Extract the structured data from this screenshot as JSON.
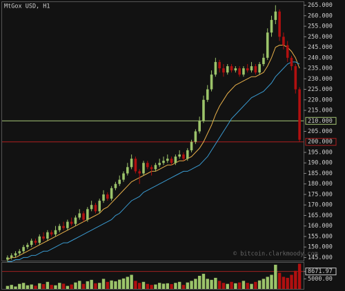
{
  "chart_data": {
    "type": "candlestick",
    "title": "MtGox USD, H1",
    "watermark": "© bitcoin.clarkmoody.com",
    "up_color": "#9cc46a",
    "down_color": "#b01010",
    "ylim": [
      143.5,
      266.5
    ],
    "yticks": [
      {
        "value": 145,
        "label": "145.000"
      },
      {
        "value": 150,
        "label": "150.000"
      },
      {
        "value": 155,
        "label": "155.000"
      },
      {
        "value": 160,
        "label": "160.000"
      },
      {
        "value": 165,
        "label": "165.000"
      },
      {
        "value": 170,
        "label": "170.000"
      },
      {
        "value": 175,
        "label": "175.000"
      },
      {
        "value": 180,
        "label": "180.000"
      },
      {
        "value": 185,
        "label": "185.000"
      },
      {
        "value": 190,
        "label": "190.000"
      },
      {
        "value": 195,
        "label": "195.000"
      },
      {
        "value": 205,
        "label": "205.000"
      },
      {
        "value": 215,
        "label": "215.000"
      },
      {
        "value": 220,
        "label": "220.000"
      },
      {
        "value": 225,
        "label": "225.000"
      },
      {
        "value": 230,
        "label": "230.000"
      },
      {
        "value": 235,
        "label": "235.000"
      },
      {
        "value": 240,
        "label": "240.000"
      },
      {
        "value": 245,
        "label": "245.000"
      },
      {
        "value": 250,
        "label": "250.000"
      },
      {
        "value": 255,
        "label": "255.000"
      },
      {
        "value": 260,
        "label": "260.000"
      },
      {
        "value": 265,
        "label": "265.000"
      }
    ],
    "open": [
      144,
      145,
      146,
      147,
      148,
      150,
      151,
      153,
      152,
      155,
      154,
      157,
      156,
      158,
      160,
      159,
      162,
      161,
      164,
      166,
      163,
      168,
      170,
      167,
      172,
      175,
      173,
      178,
      180,
      182,
      185,
      188,
      192,
      186,
      185,
      190,
      188,
      187,
      189,
      190,
      191,
      192,
      190,
      193,
      194,
      192,
      196,
      200,
      205,
      210,
      220,
      225,
      232,
      238,
      235,
      233,
      236,
      234,
      235,
      232,
      235,
      234,
      236,
      233,
      237,
      240,
      252,
      258,
      262,
      250,
      246,
      240,
      236,
      225
    ],
    "high": [
      146,
      147,
      148,
      149,
      151,
      152,
      154,
      154,
      156,
      157,
      158,
      158,
      160,
      161,
      162,
      163,
      164,
      165,
      168,
      167,
      169,
      172,
      171,
      173,
      177,
      176,
      179,
      181,
      184,
      186,
      190,
      194,
      193,
      187,
      191,
      191,
      189,
      190,
      192,
      193,
      194,
      193,
      194,
      196,
      195,
      197,
      201,
      206,
      212,
      222,
      227,
      234,
      240,
      239,
      237,
      237,
      237,
      236,
      236,
      236,
      237,
      238,
      237,
      238,
      242,
      254,
      260,
      265,
      263,
      252,
      248,
      241,
      237,
      226
    ],
    "low": [
      143,
      144,
      145,
      146,
      147,
      149,
      150,
      151,
      151,
      153,
      153,
      155,
      155,
      157,
      158,
      158,
      160,
      160,
      163,
      162,
      162,
      167,
      166,
      166,
      171,
      172,
      172,
      177,
      179,
      181,
      184,
      187,
      185,
      180,
      184,
      187,
      184,
      186,
      188,
      189,
      190,
      189,
      189,
      192,
      191,
      191,
      195,
      199,
      204,
      209,
      219,
      224,
      231,
      233,
      231,
      232,
      233,
      233,
      231,
      231,
      233,
      233,
      232,
      232,
      236,
      239,
      250,
      256,
      248,
      244,
      238,
      234,
      223,
      200
    ],
    "close": [
      145,
      146,
      147,
      148,
      150,
      151,
      153,
      152,
      155,
      154,
      157,
      156,
      158,
      160,
      159,
      162,
      161,
      164,
      166,
      163,
      168,
      170,
      167,
      172,
      175,
      173,
      178,
      180,
      182,
      185,
      188,
      192,
      186,
      185,
      190,
      188,
      187,
      189,
      190,
      191,
      192,
      190,
      193,
      194,
      192,
      196,
      200,
      205,
      210,
      220,
      225,
      232,
      238,
      235,
      233,
      236,
      234,
      235,
      232,
      235,
      234,
      236,
      233,
      237,
      240,
      252,
      258,
      262,
      250,
      246,
      240,
      236,
      225,
      201
    ],
    "moving_averages": [
      {
        "color": "#e8b04a",
        "values": [
          144,
          145,
          145,
          146,
          147,
          148,
          149,
          150,
          151,
          152,
          153,
          154,
          155,
          156,
          157,
          158,
          159,
          160,
          161,
          162,
          163,
          164,
          165,
          166,
          168,
          169,
          171,
          173,
          175,
          177,
          179,
          181,
          182,
          183,
          184,
          185,
          186,
          186,
          187,
          188,
          189,
          189,
          190,
          191,
          191,
          192,
          193,
          195,
          197,
          200,
          204,
          208,
          213,
          217,
          220,
          223,
          225,
          227,
          228,
          229,
          230,
          231,
          231,
          232,
          233,
          236,
          240,
          245,
          246,
          246,
          245,
          243,
          240,
          235
        ]
      },
      {
        "color": "#3a9ad0",
        "values": [
          143,
          143,
          144,
          144,
          145,
          145,
          146,
          146,
          147,
          148,
          148,
          149,
          150,
          151,
          152,
          152,
          153,
          154,
          155,
          156,
          157,
          158,
          159,
          160,
          161,
          162,
          163,
          165,
          166,
          168,
          170,
          172,
          173,
          174,
          176,
          177,
          178,
          179,
          180,
          181,
          182,
          183,
          184,
          185,
          186,
          186,
          187,
          188,
          189,
          191,
          193,
          196,
          199,
          202,
          205,
          208,
          211,
          213,
          215,
          217,
          219,
          221,
          222,
          223,
          224,
          226,
          228,
          231,
          233,
          235,
          237,
          238,
          238,
          237
        ]
      }
    ],
    "levels": [
      {
        "value": 210,
        "label": "210.000",
        "color": "#a8c878"
      },
      {
        "value": 200,
        "label": "200.000",
        "color": "#b02020"
      }
    ],
    "volume": {
      "ylim": [
        0,
        13000
      ],
      "yticks": [
        8671.97,
        {
          "value": 5000,
          "label": "5000.00"
        }
      ],
      "values": [
        1500,
        2000,
        1200,
        2500,
        3000,
        1800,
        2200,
        1600,
        2800,
        2400,
        3500,
        2000,
        1800,
        3000,
        2600,
        1500,
        2200,
        3200,
        4000,
        2500,
        3800,
        4500,
        2800,
        3000,
        5000,
        3500,
        4200,
        3800,
        4600,
        5200,
        6000,
        7000,
        4000,
        3000,
        3500,
        2500,
        2000,
        2200,
        3000,
        2600,
        2800,
        2400,
        3000,
        3500,
        2000,
        3200,
        4000,
        5000,
        6500,
        7500,
        5000,
        4500,
        5500,
        4000,
        3000,
        2500,
        3500,
        2800,
        3200,
        4000,
        3000,
        2500,
        3500,
        4200,
        5000,
        6000,
        7000,
        12000,
        8000,
        6000,
        5500,
        7000,
        9000,
        12500
      ]
    }
  }
}
